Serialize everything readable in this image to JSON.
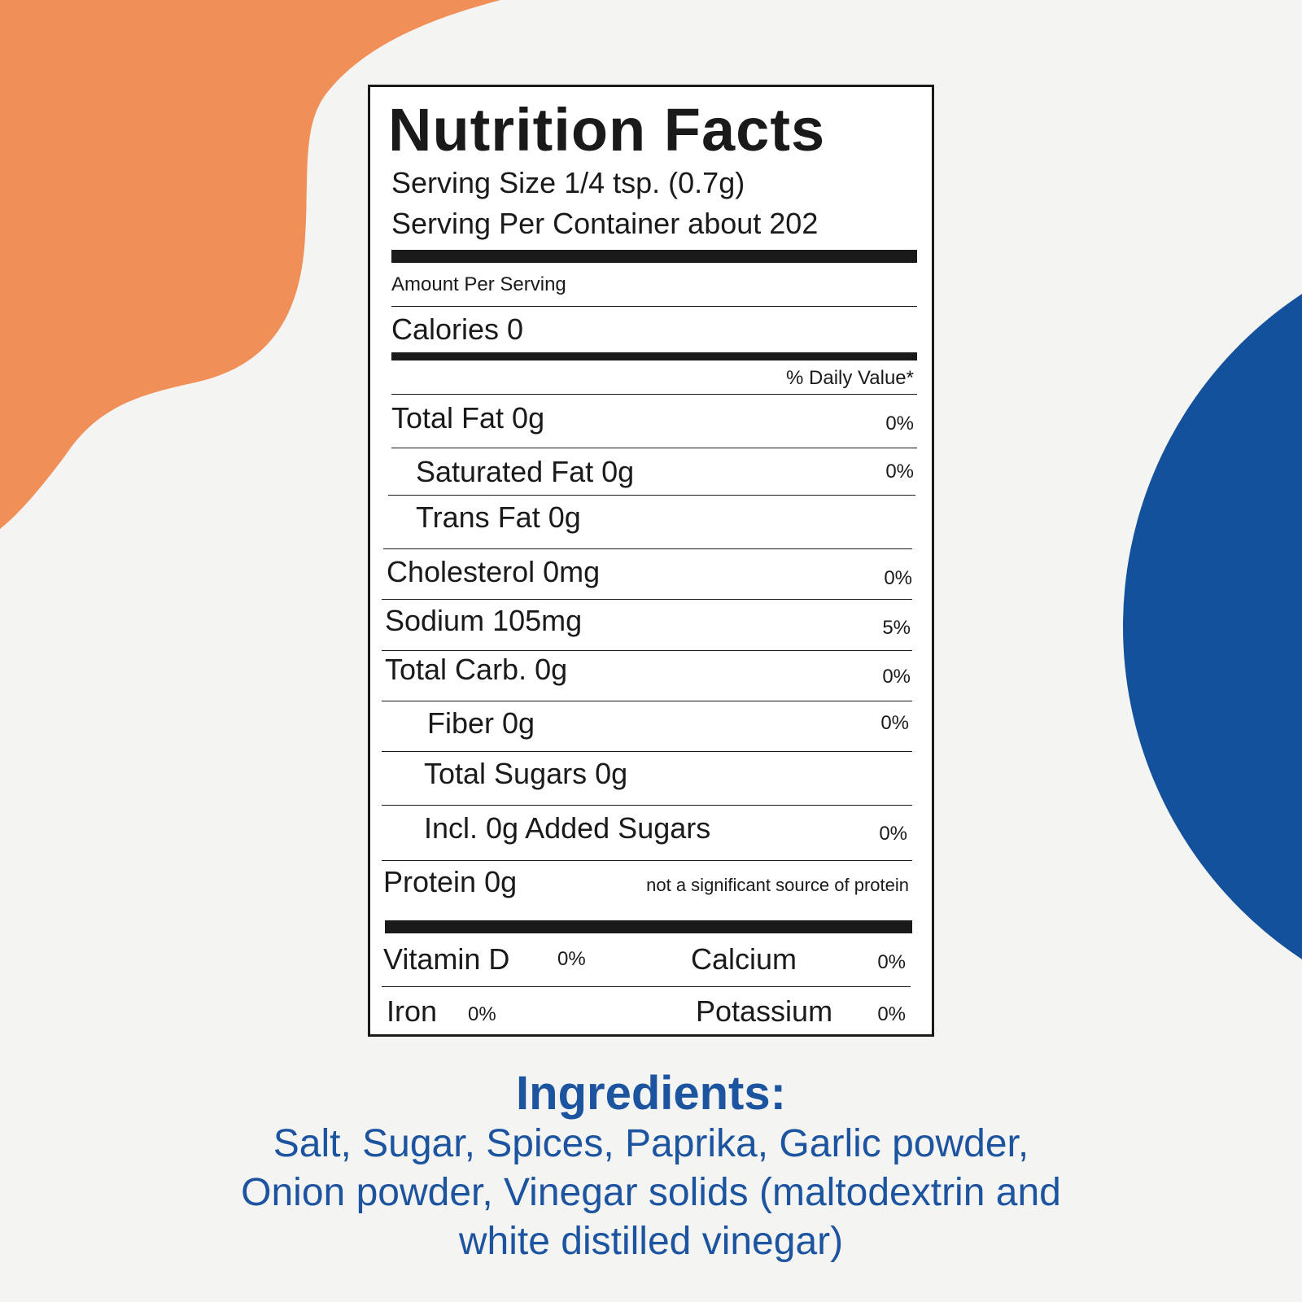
{
  "colors": {
    "background": "#f4f4f2",
    "orange_blob": "#f18f58",
    "blue_circle": "#13519d",
    "ingredients_text": "#1c54a0",
    "label_ink": "#1a1a1a"
  },
  "label": {
    "title": "Nutrition Facts",
    "serving_size": "Serving Size 1/4 tsp. (0.7g)",
    "servings_per_container": "Serving Per Container about 202",
    "amount_per_serving": "Amount Per Serving",
    "calories": "Calories 0",
    "daily_value_header": "% Daily Value*",
    "nutrients": [
      {
        "name": "Total Fat 0g",
        "dv": "0%"
      },
      {
        "name": "Saturated Fat 0g",
        "dv": "0%"
      },
      {
        "name": "Trans Fat 0g",
        "dv": ""
      },
      {
        "name": "Cholesterol 0mg",
        "dv": "0%"
      },
      {
        "name": "Sodium 105mg",
        "dv": "5%"
      },
      {
        "name": "Total Carb. 0g",
        "dv": "0%"
      },
      {
        "name": "Fiber 0g",
        "dv": "0%"
      },
      {
        "name": "Total Sugars 0g",
        "dv": ""
      },
      {
        "name": "Incl. 0g Added Sugars",
        "dv": "0%"
      },
      {
        "name": "Protein 0g",
        "dv": "not a significant source of protein"
      }
    ],
    "vitamins": [
      {
        "name": "Vitamin D",
        "dv": "0%"
      },
      {
        "name": "Calcium",
        "dv": "0%"
      },
      {
        "name": "Iron",
        "dv": "0%"
      },
      {
        "name": "Potassium",
        "dv": "0%"
      }
    ]
  },
  "ingredients": {
    "title": "Ingredients:",
    "lines": [
      "Salt, Sugar, Spices, Paprika, Garlic powder,",
      "Onion powder, Vinegar solids (maltodextrin and",
      "white distilled vinegar)"
    ]
  }
}
